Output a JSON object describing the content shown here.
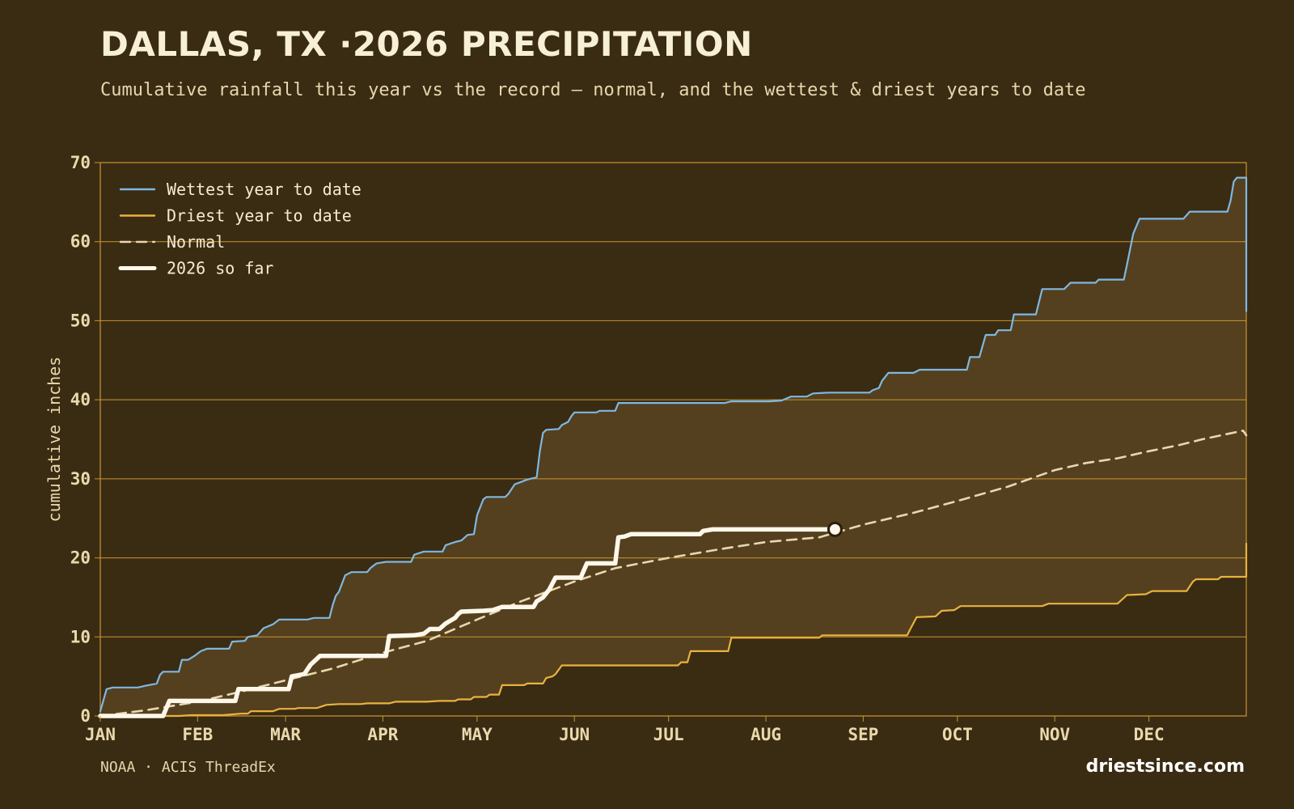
{
  "header": {
    "title": "DALLAS, TX ·2026 PRECIPITATION",
    "subtitle": "Cumulative rainfall this year vs the record — normal, and the wettest & driest years to date"
  },
  "footer": {
    "source": "NOAA · ACIS ThreadEx",
    "brand": "driestsince.com"
  },
  "colors": {
    "background": "#3a2b13",
    "band_fill": "#54401f",
    "grid": "#c9962f",
    "wettest": "#7fb8e0",
    "driest": "#e9b23f",
    "normal": "#e8d8b0",
    "current": "#fff8ea",
    "tick_text": "#ead9ac"
  },
  "chart_data": {
    "type": "line",
    "ylabel": "cumulative inches",
    "xlabel": "",
    "ylim": [
      0,
      70
    ],
    "xlim_day": [
      1,
      366
    ],
    "yticks": [
      0,
      10,
      20,
      30,
      40,
      50,
      60,
      70
    ],
    "month_ticks": [
      {
        "label": "JAN",
        "day": 1
      },
      {
        "label": "FEB",
        "day": 32
      },
      {
        "label": "MAR",
        "day": 60
      },
      {
        "label": "APR",
        "day": 91
      },
      {
        "label": "MAY",
        "day": 121
      },
      {
        "label": "JUN",
        "day": 152
      },
      {
        "label": "JUL",
        "day": 182
      },
      {
        "label": "AUG",
        "day": 213
      },
      {
        "label": "SEP",
        "day": 244
      },
      {
        "label": "OCT",
        "day": 274
      },
      {
        "label": "NOV",
        "day": 305
      },
      {
        "label": "DEC",
        "day": 335
      }
    ],
    "grid": true,
    "legend_position": "top-left",
    "band_between": [
      "Wettest year to date",
      "Driest year to date"
    ],
    "series": [
      {
        "name": "Wettest year to date",
        "style": "step",
        "points": [
          [
            1,
            0.6
          ],
          [
            3,
            3.4
          ],
          [
            5,
            3.6
          ],
          [
            13,
            3.6
          ],
          [
            15,
            3.8
          ],
          [
            19,
            4.1
          ],
          [
            20,
            5.2
          ],
          [
            21,
            5.6
          ],
          [
            26,
            5.6
          ],
          [
            27,
            7.1
          ],
          [
            29,
            7.1
          ],
          [
            31,
            7.6
          ],
          [
            33,
            8.2
          ],
          [
            35,
            8.5
          ],
          [
            42,
            8.5
          ],
          [
            43,
            9.4
          ],
          [
            47,
            9.5
          ],
          [
            48,
            10.0
          ],
          [
            51,
            10.2
          ],
          [
            53,
            11.1
          ],
          [
            56,
            11.6
          ],
          [
            58,
            12.2
          ],
          [
            67,
            12.2
          ],
          [
            69,
            12.4
          ],
          [
            74,
            12.4
          ],
          [
            75,
            14.0
          ],
          [
            76,
            15.2
          ],
          [
            77,
            15.7
          ],
          [
            79,
            17.8
          ],
          [
            81,
            18.2
          ],
          [
            86,
            18.2
          ],
          [
            87,
            18.7
          ],
          [
            89,
            19.3
          ],
          [
            92,
            19.5
          ],
          [
            100,
            19.5
          ],
          [
            101,
            20.4
          ],
          [
            104,
            20.8
          ],
          [
            110,
            20.8
          ],
          [
            111,
            21.6
          ],
          [
            114,
            22.0
          ],
          [
            116,
            22.2
          ],
          [
            118,
            22.9
          ],
          [
            120,
            23.0
          ],
          [
            121,
            25.4
          ],
          [
            123,
            27.4
          ],
          [
            124,
            27.7
          ],
          [
            130,
            27.7
          ],
          [
            131,
            28.1
          ],
          [
            133,
            29.3
          ],
          [
            137,
            29.9
          ],
          [
            140,
            30.2
          ],
          [
            141,
            33.5
          ],
          [
            142,
            35.8
          ],
          [
            143,
            36.2
          ],
          [
            147,
            36.3
          ],
          [
            148,
            36.8
          ],
          [
            150,
            37.2
          ],
          [
            151,
            37.9
          ],
          [
            152,
            38.4
          ],
          [
            159,
            38.4
          ],
          [
            160,
            38.6
          ],
          [
            165,
            38.6
          ],
          [
            166,
            39.6
          ],
          [
            170,
            39.6
          ],
          [
            200,
            39.6
          ],
          [
            202,
            39.8
          ],
          [
            214,
            39.8
          ],
          [
            218,
            39.9
          ],
          [
            221,
            40.4
          ],
          [
            226,
            40.4
          ],
          [
            228,
            40.8
          ],
          [
            233,
            40.9
          ],
          [
            246,
            40.9
          ],
          [
            247,
            41.2
          ],
          [
            249,
            41.5
          ],
          [
            250,
            42.4
          ],
          [
            252,
            43.4
          ],
          [
            260,
            43.4
          ],
          [
            262,
            43.8
          ],
          [
            277,
            43.8
          ],
          [
            278,
            45.4
          ],
          [
            281,
            45.4
          ],
          [
            283,
            48.2
          ],
          [
            286,
            48.2
          ],
          [
            287,
            48.8
          ],
          [
            291,
            48.8
          ],
          [
            292,
            50.8
          ],
          [
            299,
            50.8
          ],
          [
            301,
            54.0
          ],
          [
            308,
            54.0
          ],
          [
            310,
            54.8
          ],
          [
            318,
            54.8
          ],
          [
            319,
            55.2
          ],
          [
            327,
            55.2
          ],
          [
            328,
            57.1
          ],
          [
            330,
            61.0
          ],
          [
            332,
            62.9
          ],
          [
            346,
            62.9
          ],
          [
            348,
            63.8
          ],
          [
            360,
            63.8
          ],
          [
            361,
            65.2
          ],
          [
            362,
            67.6
          ],
          [
            363,
            68.1
          ],
          [
            366,
            68.1
          ],
          [
            366,
            51.2
          ]
        ]
      },
      {
        "name": "Driest year to date",
        "style": "step",
        "points": [
          [
            1,
            0.0
          ],
          [
            26,
            0.0
          ],
          [
            30,
            0.1
          ],
          [
            40,
            0.1
          ],
          [
            46,
            0.3
          ],
          [
            48,
            0.3
          ],
          [
            49,
            0.6
          ],
          [
            56,
            0.6
          ],
          [
            58,
            0.9
          ],
          [
            63,
            0.9
          ],
          [
            64,
            1.0
          ],
          [
            70,
            1.0
          ],
          [
            73,
            1.4
          ],
          [
            77,
            1.5
          ],
          [
            84,
            1.5
          ],
          [
            86,
            1.6
          ],
          [
            93,
            1.6
          ],
          [
            95,
            1.8
          ],
          [
            105,
            1.8
          ],
          [
            109,
            1.9
          ],
          [
            114,
            1.9
          ],
          [
            115,
            2.1
          ],
          [
            119,
            2.1
          ],
          [
            120,
            2.4
          ],
          [
            124,
            2.4
          ],
          [
            125,
            2.7
          ],
          [
            128,
            2.7
          ],
          [
            129,
            3.9
          ],
          [
            136,
            3.9
          ],
          [
            137,
            4.1
          ],
          [
            142,
            4.1
          ],
          [
            143,
            4.8
          ],
          [
            145,
            5.0
          ],
          [
            146,
            5.3
          ],
          [
            148,
            6.4
          ],
          [
            185,
            6.4
          ],
          [
            186,
            6.8
          ],
          [
            188,
            6.8
          ],
          [
            189,
            8.2
          ],
          [
            201,
            8.2
          ],
          [
            202,
            9.9
          ],
          [
            225,
            9.9
          ],
          [
            230,
            9.9
          ],
          [
            231,
            10.2
          ],
          [
            258,
            10.2
          ],
          [
            259,
            11.0
          ],
          [
            261,
            12.5
          ],
          [
            267,
            12.6
          ],
          [
            269,
            13.3
          ],
          [
            273,
            13.4
          ],
          [
            275,
            13.9
          ],
          [
            301,
            13.9
          ],
          [
            303,
            14.2
          ],
          [
            325,
            14.2
          ],
          [
            328,
            15.3
          ],
          [
            334,
            15.4
          ],
          [
            336,
            15.8
          ],
          [
            347,
            15.8
          ],
          [
            349,
            17.0
          ],
          [
            350,
            17.3
          ],
          [
            357,
            17.3
          ],
          [
            358,
            17.6
          ],
          [
            366,
            17.6
          ],
          [
            366,
            21.8
          ]
        ]
      },
      {
        "name": "Normal",
        "style": "dashed",
        "points": [
          [
            1,
            0.0
          ],
          [
            15,
            0.7
          ],
          [
            32,
            1.8
          ],
          [
            45,
            3.0
          ],
          [
            60,
            4.5
          ],
          [
            75,
            6.0
          ],
          [
            91,
            8.0
          ],
          [
            105,
            9.5
          ],
          [
            121,
            12.2
          ],
          [
            135,
            14.5
          ],
          [
            152,
            17.0
          ],
          [
            165,
            18.7
          ],
          [
            182,
            20.0
          ],
          [
            200,
            21.2
          ],
          [
            213,
            22.0
          ],
          [
            230,
            22.6
          ],
          [
            244,
            24.2
          ],
          [
            260,
            25.7
          ],
          [
            274,
            27.2
          ],
          [
            290,
            29.0
          ],
          [
            305,
            31.1
          ],
          [
            315,
            32.0
          ],
          [
            325,
            32.6
          ],
          [
            335,
            33.5
          ],
          [
            345,
            34.3
          ],
          [
            352,
            35.0
          ],
          [
            365,
            36.1
          ],
          [
            366,
            35.5
          ]
        ]
      },
      {
        "name": "2026 so far",
        "style": "step-thick",
        "points": [
          [
            1,
            0.0
          ],
          [
            21,
            0.0
          ],
          [
            23,
            1.9
          ],
          [
            44,
            1.9
          ],
          [
            45,
            3.4
          ],
          [
            61,
            3.4
          ],
          [
            62,
            5.0
          ],
          [
            66,
            5.3
          ],
          [
            68,
            6.5
          ],
          [
            71,
            7.6
          ],
          [
            92,
            7.6
          ],
          [
            93,
            10.1
          ],
          [
            101,
            10.2
          ],
          [
            104,
            10.4
          ],
          [
            106,
            11.0
          ],
          [
            109,
            11.0
          ],
          [
            111,
            11.7
          ],
          [
            114,
            12.4
          ],
          [
            115,
            12.9
          ],
          [
            116,
            13.2
          ],
          [
            123,
            13.3
          ],
          [
            126,
            13.4
          ],
          [
            129,
            13.8
          ],
          [
            139,
            13.8
          ],
          [
            140,
            14.5
          ],
          [
            142,
            15.0
          ],
          [
            144,
            16.0
          ],
          [
            146,
            17.5
          ],
          [
            154,
            17.5
          ],
          [
            156,
            19.3
          ],
          [
            165,
            19.3
          ],
          [
            166,
            22.6
          ],
          [
            168,
            22.7
          ],
          [
            170,
            23.0
          ],
          [
            192,
            23.0
          ],
          [
            193,
            23.4
          ],
          [
            196,
            23.6
          ],
          [
            235,
            23.6
          ]
        ],
        "current_marker_day": 235,
        "current_marker_value": 23.6
      }
    ]
  }
}
